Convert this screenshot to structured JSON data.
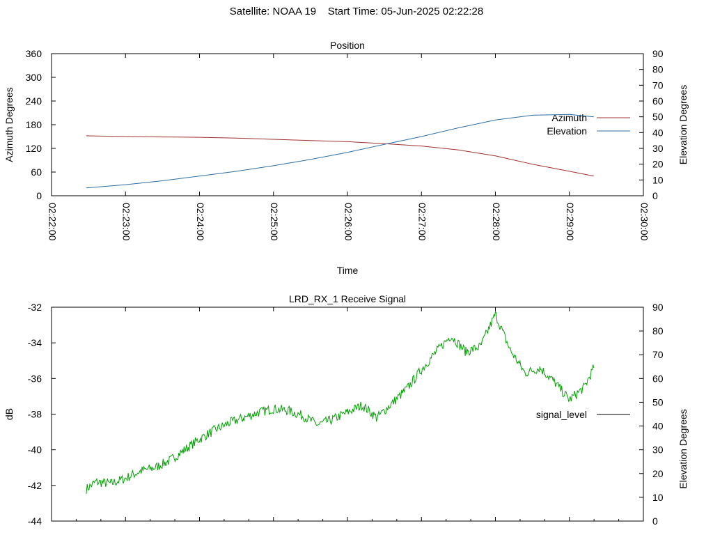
{
  "page_title": {
    "satellite_label": "Satellite: NOAA 19",
    "start_time_label": "Start Time: 05-Jun-2025 02:22:28"
  },
  "chart_data": [
    {
      "type": "line",
      "title": "Position",
      "xlabel": "Time",
      "ylabel": "Azimuth Degrees",
      "y2label": "Elevation Degrees",
      "x_ticks": [
        "02:22:00",
        "02:23:00",
        "02:24:00",
        "02:25:00",
        "02:26:00",
        "02:27:00",
        "02:28:00",
        "02:29:00",
        "02:30:00"
      ],
      "xlim_minutes": [
        0,
        8
      ],
      "ylim": [
        0,
        360
      ],
      "y_ticks": [
        "0",
        "60",
        "120",
        "180",
        "240",
        "300",
        "360"
      ],
      "y2lim": [
        0,
        90
      ],
      "y2_ticks": [
        "0",
        "10",
        "20",
        "30",
        "40",
        "50",
        "60",
        "70",
        "80",
        "90"
      ],
      "grid": false,
      "legend_position": "right",
      "series": [
        {
          "name": "Azimuth",
          "axis": "left",
          "color": "#a0302f",
          "x_minutes": [
            0.47,
            1.0,
            1.5,
            2.0,
            2.5,
            3.0,
            3.5,
            4.0,
            4.5,
            5.0,
            5.5,
            6.0,
            6.5,
            7.0,
            7.33
          ],
          "values": [
            152,
            150,
            149,
            148,
            146,
            143,
            140,
            137,
            132,
            126,
            116,
            101,
            80,
            62,
            50
          ]
        },
        {
          "name": "Elevation",
          "axis": "right",
          "color": "#2d6ea3",
          "x_minutes": [
            0.47,
            1.0,
            1.5,
            2.0,
            2.5,
            3.0,
            3.5,
            4.0,
            4.5,
            5.0,
            5.5,
            6.0,
            6.5,
            7.0,
            7.33
          ],
          "values": [
            5,
            7,
            9.5,
            12.5,
            15.5,
            19,
            23,
            27.5,
            32.5,
            37.5,
            43,
            48,
            51,
            51.5,
            50
          ]
        }
      ]
    },
    {
      "type": "line",
      "title": "LRD_RX_1 Receive Signal",
      "xlabel": "",
      "ylabel": "dB",
      "y2label": "Elevation Degrees",
      "xlim_minutes": [
        0,
        8
      ],
      "ylim": [
        -44,
        -32
      ],
      "y_ticks": [
        "-32",
        "-34",
        "-36",
        "-38",
        "-40",
        "-42",
        "-44"
      ],
      "y2lim": [
        0,
        90
      ],
      "y2_ticks": [
        "0",
        "10",
        "20",
        "30",
        "40",
        "50",
        "60",
        "70",
        "80",
        "90"
      ],
      "grid": false,
      "legend_position": "right",
      "series": [
        {
          "name": "signal_level",
          "axis": "left",
          "color": "#00a000",
          "x_minutes": [
            0.47,
            0.6,
            0.8,
            1.0,
            1.2,
            1.4,
            1.6,
            1.8,
            2.0,
            2.2,
            2.4,
            2.6,
            2.8,
            3.0,
            3.2,
            3.4,
            3.6,
            3.8,
            4.0,
            4.2,
            4.4,
            4.6,
            4.8,
            5.0,
            5.2,
            5.4,
            5.6,
            5.8,
            6.0,
            6.2,
            6.4,
            6.6,
            6.8,
            7.0,
            7.2,
            7.33
          ],
          "values": [
            -42.2,
            -41.8,
            -41.9,
            -41.6,
            -41.2,
            -41.0,
            -40.6,
            -40.0,
            -39.4,
            -38.9,
            -38.5,
            -38.2,
            -37.9,
            -37.7,
            -37.8,
            -38.1,
            -38.6,
            -38.3,
            -37.9,
            -37.5,
            -38.2,
            -37.4,
            -36.6,
            -35.5,
            -34.5,
            -33.6,
            -34.5,
            -34.2,
            -32.4,
            -34.4,
            -35.7,
            -35.4,
            -36.2,
            -37.2,
            -36.5,
            -35.4
          ]
        }
      ]
    }
  ]
}
